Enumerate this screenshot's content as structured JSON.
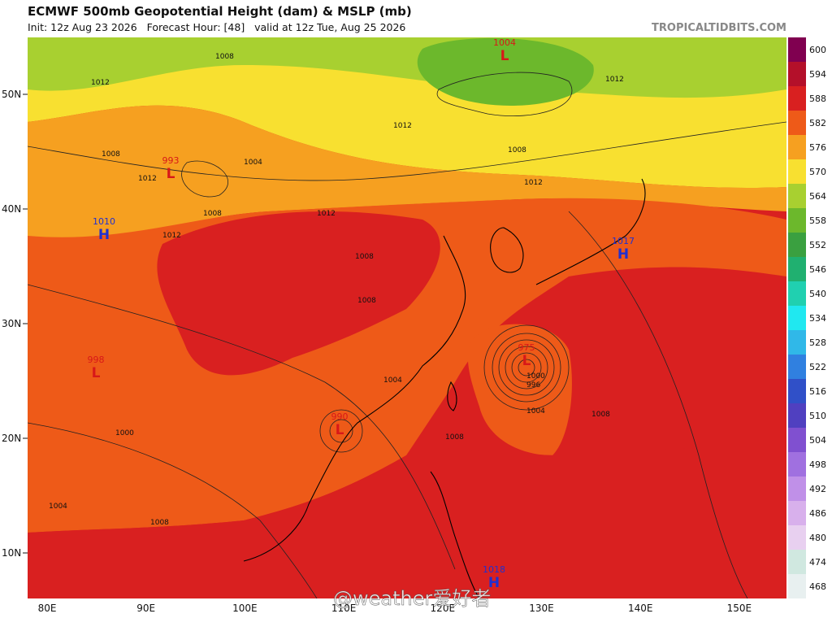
{
  "header": {
    "title": "ECMWF 500mb Geopotential Height (dam) & MSLP (mb)",
    "subtitle": "Init: 12z Aug 23 2026   Forecast Hour: [48]   valid at 12z Tue, Aug 25 2026",
    "brand": "TROPICALTIDBITS.COM"
  },
  "map": {
    "lat_labels": [
      "50N",
      "40N",
      "30N",
      "20N",
      "10N"
    ],
    "lon_labels": [
      "80E",
      "90E",
      "100E",
      "110E",
      "120E",
      "130E",
      "140E",
      "150E"
    ],
    "centers": [
      {
        "pressure": "1004",
        "letter": "L"
      },
      {
        "pressure": "993",
        "letter": "L"
      },
      {
        "pressure": "1010",
        "letter": "H"
      },
      {
        "pressure": "1017",
        "letter": "H"
      },
      {
        "pressure": "975",
        "letter": "L"
      },
      {
        "pressure": "990",
        "letter": "L"
      },
      {
        "pressure": "998",
        "letter": "L"
      },
      {
        "pressure": "1018",
        "letter": "H"
      }
    ],
    "isobar_labels": [
      "1008",
      "1012",
      "1008",
      "1012",
      "1008",
      "1012",
      "1004",
      "1008",
      "1012",
      "1008",
      "1000",
      "1004",
      "1008",
      "1012",
      "1012",
      "1008",
      "1004",
      "1008",
      "1012",
      "1000",
      "996",
      "1004",
      "1008"
    ]
  },
  "colorbar": {
    "levels": [
      {
        "label": "600",
        "color": "#800050"
      },
      {
        "label": "594",
        "color": "#b4102a"
      },
      {
        "label": "588",
        "color": "#d92020"
      },
      {
        "label": "582",
        "color": "#ee5a18"
      },
      {
        "label": "576",
        "color": "#f6a020"
      },
      {
        "label": "570",
        "color": "#f8e030"
      },
      {
        "label": "564",
        "color": "#a8d030"
      },
      {
        "label": "558",
        "color": "#6cb82c"
      },
      {
        "label": "552",
        "color": "#3aa040"
      },
      {
        "label": "546",
        "color": "#20b070"
      },
      {
        "label": "540",
        "color": "#20d0b0"
      },
      {
        "label": "534",
        "color": "#20e8f0"
      },
      {
        "label": "528",
        "color": "#30b8e8"
      },
      {
        "label": "522",
        "color": "#3080e0"
      },
      {
        "label": "516",
        "color": "#3050c8"
      },
      {
        "label": "510",
        "color": "#5040c0"
      },
      {
        "label": "504",
        "color": "#8050d0"
      },
      {
        "label": "498",
        "color": "#a070e0"
      },
      {
        "label": "492",
        "color": "#c090e8"
      },
      {
        "label": "486",
        "color": "#d8b0ec"
      },
      {
        "label": "480",
        "color": "#e8d0f0"
      },
      {
        "label": "474",
        "color": "#d0e8e0"
      },
      {
        "label": "468",
        "color": "#e8f0f0"
      }
    ]
  },
  "watermark": "@weather爱好者"
}
